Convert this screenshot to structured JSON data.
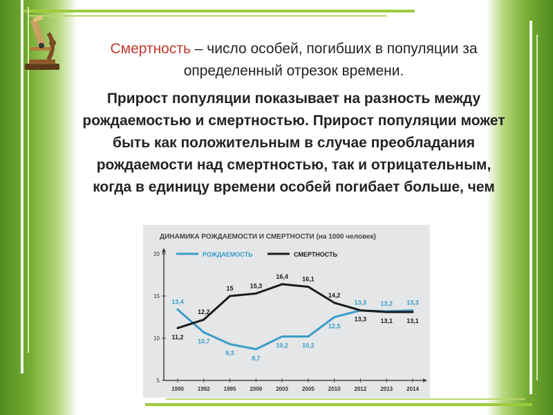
{
  "slide": {
    "term": "Смертность",
    "definition_rest": " – число особей, погибших в популяции за определенный отрезок времени.",
    "paragraph2": "Прирост популяции показывает на разность между рождаемостью и смертностью. Прирост популяции может быть как положительным в случае преобладания рождаемости над смертностью, так и отрицательным, когда в единицу времени особей погибает больше, чем"
  },
  "colors": {
    "birth": "#3a9cc9",
    "death": "#1a1a1a",
    "term": "#c0392b",
    "accent_green": "#9ccc3a"
  },
  "icons": [
    "microscope-icon"
  ],
  "chart_data": {
    "type": "line",
    "title": "ДИНАМИКА РОЖДАЕМОСТИ И СМЕРТНОСТИ (на 1000 человек)",
    "categories": [
      "1990",
      "1992",
      "1995",
      "2000",
      "2003",
      "2005",
      "2010",
      "2012",
      "2013",
      "2014"
    ],
    "series": [
      {
        "name": "РОЖДАЕМОСТЬ",
        "values": [
          13.4,
          10.7,
          9.3,
          8.7,
          10.2,
          10.2,
          12.5,
          13.3,
          13.2,
          13.3
        ],
        "labels": [
          "13,4",
          "10,7",
          "9,3",
          "8,7",
          "10,2",
          "10,2",
          "12,5",
          "13,3",
          "13,2",
          "13,3"
        ]
      },
      {
        "name": "СМЕРТНОСТЬ",
        "values": [
          11.2,
          12.2,
          15,
          15.3,
          16.4,
          16.1,
          14.2,
          13.3,
          13.1,
          13.1
        ],
        "labels": [
          "11,2",
          "12,2",
          "15",
          "15,3",
          "16,4",
          "16,1",
          "14,2",
          "13,3",
          "13,1",
          "13,1"
        ]
      }
    ],
    "yticks": [
      "5",
      "10",
      "15",
      "20"
    ],
    "ylim": [
      5,
      20
    ],
    "legend_position": "top-left",
    "grid": false
  }
}
